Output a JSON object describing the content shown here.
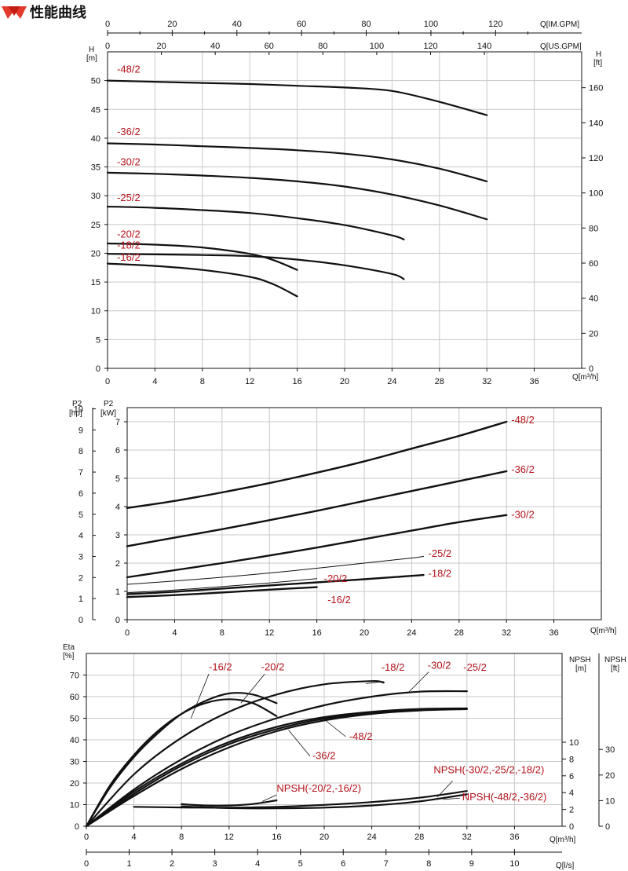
{
  "header": {
    "title": "性能曲线",
    "logo_icon": "red-diamond-logo-icon"
  },
  "colors": {
    "label": "#b3121a",
    "curve": "#111111",
    "grid": "#c8c8c8",
    "logo": "#d9241c"
  },
  "chart_data": [
    {
      "id": "head",
      "type": "line",
      "xlabel": "Q[m³/h]",
      "ylabel": "H\n[m]",
      "ylabel_right": "H\n[ft]",
      "top_axis_1_label": "Q[IM.GPM]",
      "top_axis_2_label": "Q[US.GPM]",
      "xlim": [
        0,
        40
      ],
      "ylim": [
        0,
        55
      ],
      "x_ticks": [
        0,
        4,
        8,
        12,
        16,
        20,
        24,
        28,
        32,
        36
      ],
      "y_ticks": [
        0,
        5,
        10,
        15,
        20,
        25,
        30,
        35,
        40,
        45,
        50
      ],
      "right_ticks": [
        0,
        20,
        40,
        60,
        80,
        100,
        120,
        140,
        160
      ],
      "im_gpm_ticks": [
        0,
        20,
        40,
        60,
        80,
        100,
        120
      ],
      "us_gpm_ticks": [
        0,
        20,
        40,
        60,
        80,
        100,
        120,
        140
      ],
      "series": [
        {
          "name": "-48/2",
          "x": [
            0,
            4,
            8,
            12,
            16,
            20,
            24,
            28,
            32
          ],
          "y": [
            50,
            49.8,
            49.6,
            49.4,
            49.1,
            48.8,
            48.2,
            46.3,
            44
          ]
        },
        {
          "name": "-36/2",
          "x": [
            0,
            4,
            8,
            12,
            16,
            20,
            24,
            28,
            32
          ],
          "y": [
            39.1,
            38.9,
            38.6,
            38.3,
            37.9,
            37.3,
            36.3,
            34.7,
            32.5
          ]
        },
        {
          "name": "-30/2",
          "x": [
            0,
            4,
            8,
            12,
            16,
            20,
            24,
            28,
            32
          ],
          "y": [
            34,
            33.8,
            33.5,
            33.1,
            32.5,
            31.6,
            30.2,
            28.3,
            25.9
          ]
        },
        {
          "name": "-25/2",
          "x": [
            0,
            4,
            8,
            12,
            16,
            20,
            24,
            25
          ],
          "y": [
            28.1,
            27.9,
            27.5,
            27,
            26.1,
            24.9,
            23.1,
            22.4
          ]
        },
        {
          "name": "-20/2",
          "x": [
            0,
            4,
            8,
            12,
            14,
            16
          ],
          "y": [
            21.7,
            21.5,
            21,
            19.9,
            18.8,
            17.1
          ]
        },
        {
          "name": "-18/2",
          "x": [
            0,
            4,
            8,
            12,
            16,
            20,
            24,
            25
          ],
          "y": [
            19.9,
            19.8,
            19.7,
            19.5,
            18.9,
            17.9,
            16.4,
            15.5
          ]
        },
        {
          "name": "-16/2",
          "x": [
            0,
            4,
            8,
            12,
            14,
            16
          ],
          "y": [
            18.2,
            17.8,
            17.1,
            15.9,
            14.6,
            12.5
          ]
        }
      ],
      "labels": [
        {
          "series": "-48/2",
          "x": 0.8,
          "y": 51.4
        },
        {
          "series": "-36/2",
          "x": 0.8,
          "y": 40.5
        },
        {
          "series": "-30/2",
          "x": 0.8,
          "y": 35.3
        },
        {
          "series": "-25/2",
          "x": 0.8,
          "y": 29.1
        },
        {
          "series": "-20/2",
          "x": 0.8,
          "y": 22.7
        },
        {
          "series": "-18/2",
          "x": 0.8,
          "y": 20.8
        },
        {
          "series": "-16/2",
          "x": 0.8,
          "y": 18.7
        }
      ]
    },
    {
      "id": "power",
      "type": "line",
      "xlabel": "Q[m³/h]",
      "ylabel_left": "P2\n[hp]",
      "ylabel": "P2\n[kW]",
      "xlim": [
        0,
        40
      ],
      "ylim": [
        0,
        7.5
      ],
      "x_ticks": [
        0,
        4,
        8,
        12,
        16,
        20,
        24,
        28,
        32,
        36
      ],
      "y_ticks": [
        0,
        1,
        2,
        3,
        4,
        5,
        6,
        7
      ],
      "hp_ticks": [
        0,
        1,
        2,
        3,
        4,
        5,
        6,
        7,
        8,
        9,
        10
      ],
      "series": [
        {
          "name": "-48/2",
          "x": [
            0,
            4,
            8,
            12,
            16,
            20,
            24,
            28,
            32
          ],
          "y": [
            3.95,
            4.2,
            4.5,
            4.83,
            5.2,
            5.6,
            6.05,
            6.5,
            7.0
          ]
        },
        {
          "name": "-36/2",
          "x": [
            0,
            4,
            8,
            12,
            16,
            20,
            24,
            28,
            32
          ],
          "y": [
            2.6,
            2.9,
            3.2,
            3.52,
            3.85,
            4.2,
            4.55,
            4.9,
            5.25
          ]
        },
        {
          "name": "-30/2",
          "x": [
            0,
            4,
            8,
            12,
            16,
            20,
            24,
            28,
            32
          ],
          "y": [
            1.5,
            1.75,
            2.0,
            2.27,
            2.55,
            2.85,
            3.15,
            3.45,
            3.7
          ]
        },
        {
          "name": "-25/2",
          "x": [
            0,
            4,
            8,
            12,
            16,
            20,
            24,
            25
          ],
          "y": [
            1.25,
            1.37,
            1.5,
            1.65,
            1.82,
            2.0,
            2.18,
            2.24
          ]
        },
        {
          "name": "-20/2",
          "x": [
            0,
            4,
            8,
            12,
            16
          ],
          "y": [
            0.95,
            1.05,
            1.17,
            1.3,
            1.45
          ]
        },
        {
          "name": "-18/2",
          "x": [
            0,
            4,
            8,
            12,
            16,
            20,
            24,
            25
          ],
          "y": [
            0.9,
            0.99,
            1.1,
            1.21,
            1.32,
            1.43,
            1.55,
            1.58
          ]
        },
        {
          "name": "-16/2",
          "x": [
            0,
            4,
            8,
            12,
            16
          ],
          "y": [
            0.8,
            0.87,
            0.96,
            1.06,
            1.15
          ]
        }
      ],
      "labels": [
        {
          "series": "-48/2",
          "x": 32.4,
          "y": 6.95
        },
        {
          "series": "-36/2",
          "x": 32.4,
          "y": 5.2
        },
        {
          "series": "-30/2",
          "x": 32.4,
          "y": 3.6
        },
        {
          "series": "-25/2",
          "x": 25.4,
          "y": 2.22
        },
        {
          "series": "-18/2",
          "x": 25.4,
          "y": 1.52
        },
        {
          "series": "-20/2",
          "x": 16.6,
          "y": 1.33
        },
        {
          "series": "-16/2",
          "x": 16.9,
          "y": 0.58
        }
      ]
    },
    {
      "id": "efficiency",
      "type": "line",
      "xlabel": "Q[m³/h]",
      "x2label": "Q[l/s]",
      "ylabel": "Eta\n[%]",
      "ylabel_right_1": "NPSH\n[m]",
      "ylabel_right_2": "NPSH\n[ft]",
      "xlim": [
        0,
        40
      ],
      "ylim": [
        0,
        80
      ],
      "x_ticks": [
        0,
        4,
        8,
        12,
        16,
        20,
        24,
        28,
        32,
        36
      ],
      "y_ticks": [
        0,
        10,
        20,
        30,
        40,
        50,
        60,
        70
      ],
      "ls_ticks": [
        0,
        1,
        2,
        3,
        4,
        5,
        6,
        7,
        8,
        9,
        10
      ],
      "npsh_m_ticks": [
        0,
        2,
        4,
        6,
        8,
        10
      ],
      "npsh_ft_ticks": [
        0,
        10,
        20,
        30
      ],
      "series": [
        {
          "name": "-16/2",
          "x": [
            0,
            2,
            4,
            6,
            8,
            10,
            12,
            14,
            16
          ],
          "y": [
            0,
            19,
            33,
            44,
            52,
            57,
            58.8,
            57,
            51
          ]
        },
        {
          "name": "-20/2",
          "x": [
            0,
            2,
            4,
            6,
            8,
            10,
            12,
            14,
            16
          ],
          "y": [
            0,
            18,
            32,
            43,
            52,
            58,
            61.5,
            61,
            57
          ]
        },
        {
          "name": "-18/2",
          "x": [
            0,
            4,
            8,
            12,
            16,
            20,
            24,
            25
          ],
          "y": [
            0,
            24,
            41,
            53,
            61,
            65.7,
            67.2,
            66.5
          ]
        },
        {
          "name": "-30/2",
          "x": [
            0,
            4,
            8,
            12,
            16,
            20,
            24,
            28,
            32
          ],
          "y": [
            0,
            17,
            31,
            42,
            50,
            56,
            60,
            62.3,
            62.5
          ]
        },
        {
          "name": "-25/2",
          "x": [
            0,
            4,
            8,
            12,
            16,
            20,
            24,
            28,
            32
          ],
          "y": [
            0,
            16,
            29,
            39,
            46,
            50.5,
            53,
            54.3,
            54.6
          ]
        },
        {
          "name": "-48/2",
          "x": [
            0,
            4,
            8,
            12,
            16,
            20,
            24,
            28,
            32
          ],
          "y": [
            0,
            15,
            28,
            38,
            45,
            49.8,
            52.4,
            53.8,
            54.3
          ]
        },
        {
          "name": "-36/2",
          "x": [
            0,
            4,
            8,
            12,
            16,
            20,
            24,
            28,
            32
          ],
          "y": [
            0,
            14,
            26.5,
            36.5,
            44,
            49,
            52,
            53.6,
            54.2
          ]
        },
        {
          "name": "NPSH(-20/2,-16/2)",
          "x": [
            8,
            10,
            12,
            14,
            16
          ],
          "y": [
            10.2,
            9.6,
            9.6,
            10.3,
            12.0
          ]
        },
        {
          "name": "NPSH(-30/2,-25/2,-18/2)",
          "x": [
            4,
            8,
            12,
            16,
            20,
            24,
            28,
            32
          ],
          "y": [
            9.0,
            8.7,
            8.6,
            9.0,
            9.9,
            11.2,
            13.2,
            16.3
          ]
        },
        {
          "name": "NPSH(-48/2,-36/2)",
          "x": [
            8,
            12,
            16,
            20,
            24,
            28,
            32
          ],
          "y": [
            9.2,
            8.4,
            8.3,
            8.6,
            9.6,
            11.5,
            14.8
          ]
        }
      ],
      "labels": [
        {
          "series": "-16/2",
          "x": 10.3,
          "y": 72.2
        },
        {
          "series": "-20/2",
          "x": 14.7,
          "y": 72.2
        },
        {
          "series": "-18/2",
          "x": 24.8,
          "y": 72.0
        },
        {
          "series": "-30/2",
          "x": 28.7,
          "y": 73.0
        },
        {
          "series": "-25/2",
          "x": 31.7,
          "y": 72.0
        },
        {
          "series": "-48/2",
          "x": 22.1,
          "y": 40.0
        },
        {
          "series": "-36/2",
          "x": 19.0,
          "y": 31.1
        },
        {
          "series": "NPSH(-20/2,-16/2)",
          "x": 16.0,
          "y": 16.0
        },
        {
          "series": "NPSH(-30/2,-25/2,-18/2)",
          "x": 29.2,
          "y": 24.5
        },
        {
          "series": "NPSH(-48/2,-36/2)",
          "x": 31.6,
          "y": 12.0
        }
      ]
    }
  ]
}
